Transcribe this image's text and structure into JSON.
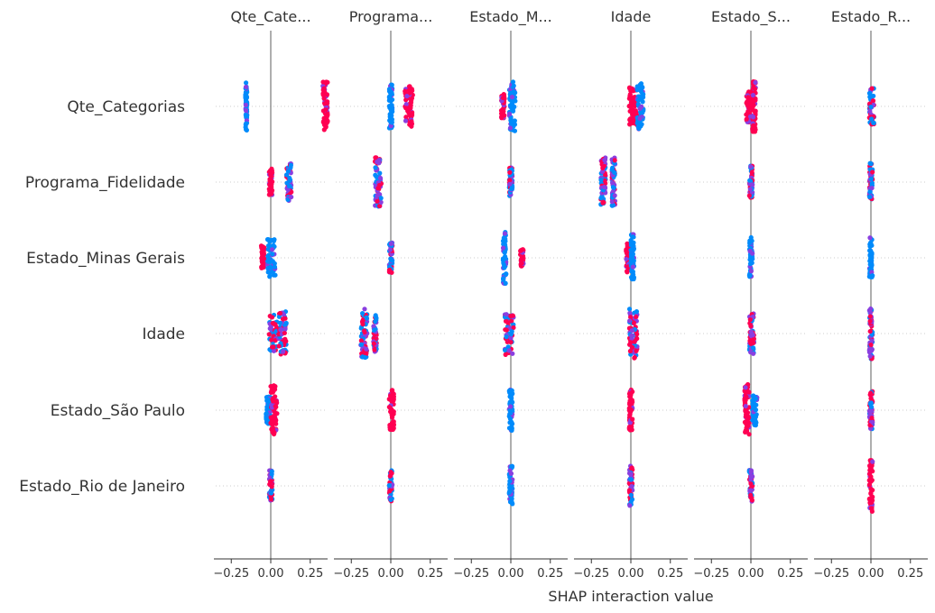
{
  "chart_data": {
    "type": "scatter",
    "subtype": "shap-interaction-summary",
    "xlabel": "SHAP interaction value",
    "xlim": [
      -0.36,
      0.36
    ],
    "ticks": [
      -0.25,
      0.0,
      0.25
    ],
    "tick_labels": [
      "−0.25",
      "0.00",
      "0.25"
    ],
    "features": [
      "Qte_Categorias",
      "Programa_Fidelidade",
      "Estado_Minas Gerais",
      "Idade",
      "Estado_São Paulo",
      "Estado_Rio de Janeiro"
    ],
    "panel_titles": [
      "Qte_Cate...",
      "Programa...",
      "Estado_M...",
      "Idade",
      "Estado_S...",
      "Estado_R..."
    ],
    "colors": {
      "high": "#ff0052",
      "low": "#008bfb",
      "mid": "#8a3fe0",
      "zero_line": "#999999",
      "axis": "#333333"
    },
    "clusters": [
      [
        [
          [
            -0.16,
            -0.15,
            "blue",
            0.7
          ],
          [
            0.33,
            0.36,
            "red",
            0.75
          ]
        ],
        [
          [
            -0.01,
            0.01,
            "red",
            0.4
          ],
          [
            0.1,
            0.13,
            "mix",
            0.55
          ]
        ],
        [
          [
            -0.06,
            -0.04,
            "red",
            0.35
          ],
          [
            -0.02,
            0.03,
            "blue",
            0.55
          ]
        ],
        [
          [
            -0.01,
            0.04,
            "mix",
            0.55
          ],
          [
            0.05,
            0.1,
            "mix",
            0.65
          ]
        ],
        [
          [
            -0.03,
            0.0,
            "blue",
            0.4
          ],
          [
            0.0,
            0.04,
            "red",
            0.72
          ]
        ],
        [
          [
            -0.01,
            0.01,
            "mix",
            0.45
          ]
        ]
      ],
      [
        [
          [
            -0.01,
            0.01,
            "blue",
            0.65
          ],
          [
            0.09,
            0.14,
            "red",
            0.6
          ]
        ],
        [
          [
            -0.1,
            -0.06,
            "mix",
            0.72
          ]
        ],
        [
          [
            -0.01,
            0.01,
            "mix",
            0.45
          ]
        ],
        [
          [
            -0.19,
            -0.15,
            "mix",
            0.72
          ],
          [
            -0.11,
            -0.09,
            "mix",
            0.55
          ]
        ],
        [
          [
            -0.01,
            0.02,
            "red",
            0.6
          ]
        ],
        [
          [
            -0.01,
            0.01,
            "mix",
            0.45
          ]
        ]
      ],
      [
        [
          [
            -0.06,
            -0.04,
            "red",
            0.38
          ],
          [
            -0.01,
            0.03,
            "blue",
            0.72
          ]
        ],
        [
          [
            -0.01,
            0.01,
            "mix",
            0.45
          ]
        ],
        [
          [
            -0.05,
            -0.03,
            "blue",
            0.75
          ],
          [
            0.06,
            0.08,
            "red",
            0.25
          ]
        ],
        [
          [
            -0.04,
            0.02,
            "mix",
            0.65
          ]
        ],
        [
          [
            -0.01,
            0.01,
            "blue",
            0.6
          ]
        ],
        [
          [
            -0.01,
            0.01,
            "blue",
            0.6
          ]
        ]
      ],
      [
        [
          [
            -0.01,
            0.04,
            "red",
            0.55
          ],
          [
            0.04,
            0.08,
            "blue",
            0.68
          ]
        ],
        [
          [
            -0.19,
            -0.16,
            "mix",
            0.72
          ],
          [
            -0.12,
            -0.1,
            "mix",
            0.72
          ]
        ],
        [
          [
            -0.03,
            0.0,
            "red",
            0.45
          ],
          [
            0.0,
            0.02,
            "blue",
            0.72
          ]
        ],
        [
          [
            -0.01,
            0.04,
            "mix",
            0.72
          ]
        ],
        [
          [
            -0.01,
            0.01,
            "red",
            0.6
          ]
        ],
        [
          [
            -0.01,
            0.01,
            "mix",
            0.6
          ]
        ]
      ],
      [
        [
          [
            -0.03,
            0.0,
            "red",
            0.48
          ],
          [
            0.01,
            0.03,
            "red",
            0.75
          ]
        ],
        [
          [
            -0.01,
            0.01,
            "mix",
            0.48
          ]
        ],
        [
          [
            -0.01,
            0.01,
            "blue",
            0.6
          ]
        ],
        [
          [
            -0.01,
            0.02,
            "mix",
            0.6
          ]
        ],
        [
          [
            -0.04,
            -0.01,
            "red",
            0.75
          ],
          [
            0.01,
            0.04,
            "blue",
            0.45
          ]
        ],
        [
          [
            -0.01,
            0.01,
            "mix",
            0.48
          ]
        ]
      ],
      [
        [
          [
            -0.01,
            0.02,
            "mix",
            0.55
          ]
        ],
        [
          [
            -0.01,
            0.01,
            "mix",
            0.55
          ]
        ],
        [
          [
            -0.01,
            0.01,
            "blue",
            0.6
          ]
        ],
        [
          [
            -0.01,
            0.01,
            "mix",
            0.75
          ]
        ],
        [
          [
            -0.01,
            0.01,
            "mix",
            0.55
          ]
        ],
        [
          [
            -0.01,
            0.01,
            "red",
            0.75
          ]
        ]
      ]
    ]
  }
}
